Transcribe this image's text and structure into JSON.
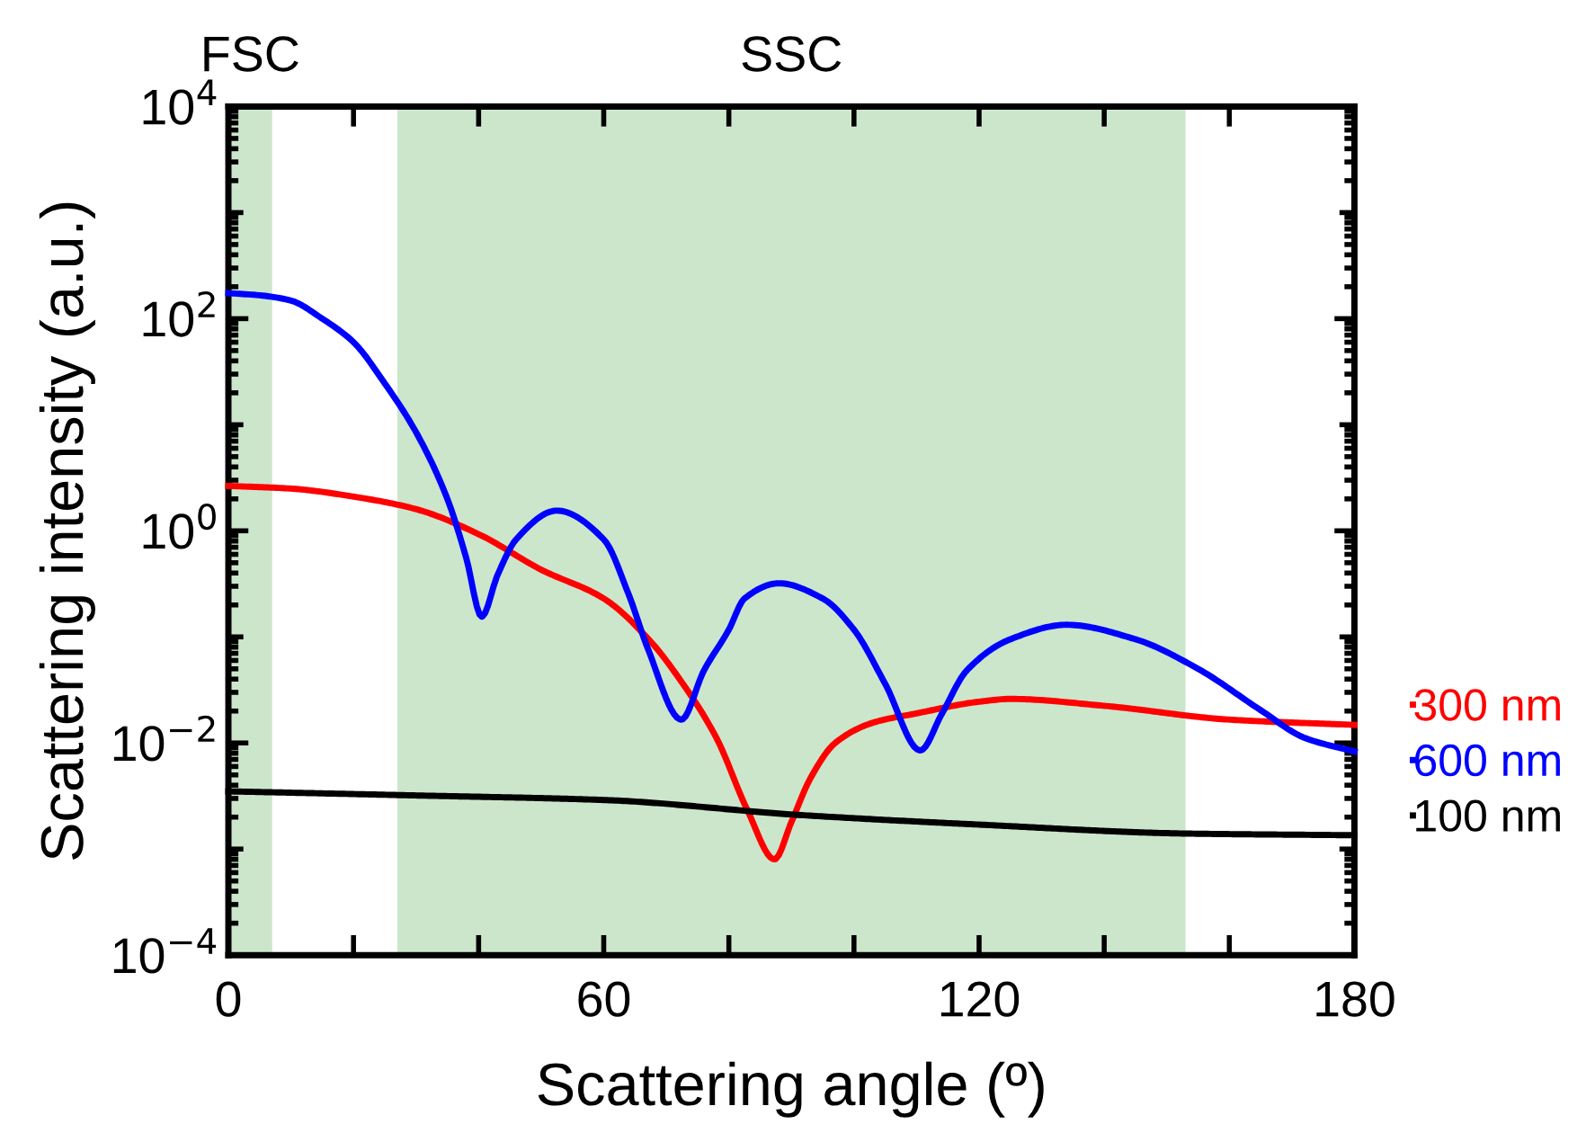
{
  "chart_data": {
    "type": "line",
    "xlabel": "Scattering angle (º)",
    "ylabel": "Scattering intensity (a.u.)",
    "log": "y",
    "xlim": [
      0,
      180
    ],
    "ylim": [
      0.0001,
      10000
    ],
    "xticks": [
      0,
      {
        "value": 20,
        "label": null
      },
      {
        "value": 40,
        "label": null
      },
      60,
      {
        "value": 80,
        "label": null
      },
      {
        "value": 100,
        "label": null
      },
      120,
      {
        "value": 140,
        "label": null
      },
      {
        "value": 160,
        "label": null
      },
      180
    ],
    "yticks": [
      {
        "value": 0.0001,
        "label": "10$^{−4}$"
      },
      {
        "value": 0.001,
        "label": null
      },
      {
        "value": 0.01,
        "label": "10$^{−2}$"
      },
      {
        "value": 0.1,
        "label": null
      },
      {
        "value": 1,
        "label": "10$^{0}$"
      },
      {
        "value": 10,
        "label": null
      },
      {
        "value": 100,
        "label": "10$^{2}$"
      },
      {
        "value": 1000,
        "label": null
      },
      {
        "value": 10000,
        "label": "10$^{4}$"
      }
    ],
    "grid": false,
    "legend": "right",
    "marker": "none",
    "line_style": "solid",
    "bands": [
      {
        "axis": "x",
        "from": 0,
        "to": 7,
        "label": "FSC",
        "color": "#cce6cc"
      },
      {
        "axis": "x",
        "from": 27,
        "to": 153,
        "label": "SSC",
        "color": "#cce6cc"
      }
    ],
    "series": [
      {
        "name": "300 nm",
        "color": "#ff0000",
        "x": [
          0,
          10,
          20,
          30,
          40,
          50,
          60,
          67.6,
          72,
          78,
          83,
          87.3,
          90,
          93,
          97,
          103,
          110,
          120,
          125,
          140,
          160,
          180
        ],
        "values": [
          2.65,
          2.5,
          2.1,
          1.6,
          0.93,
          0.43,
          0.23,
          0.089,
          0.041,
          0.0112,
          0.0023,
          0.0008,
          0.0018,
          0.0046,
          0.01,
          0.0155,
          0.019,
          0.0245,
          0.026,
          0.0224,
          0.0166,
          0.0148
        ]
      },
      {
        "name": "600 nm",
        "color": "#0000ff",
        "x": [
          0,
          5,
          10,
          15,
          20,
          25,
          30,
          35,
          38,
          40.5,
          43,
          46,
          52.5,
          60,
          64,
          67,
          72.4,
          76,
          80,
          82.5,
          88,
          95,
          100,
          105,
          110.6,
          114,
          118,
          125,
          134,
          145,
          155,
          165,
          172,
          180
        ],
        "values": [
          174,
          166,
          148,
          100,
          60,
          24.5,
          8.5,
          2.0,
          0.56,
          0.155,
          0.38,
          0.83,
          1.55,
          0.83,
          0.25,
          0.079,
          0.0166,
          0.048,
          0.117,
          0.23,
          0.32,
          0.23,
          0.117,
          0.036,
          0.0085,
          0.0186,
          0.048,
          0.095,
          0.13,
          0.095,
          0.05,
          0.0204,
          0.0112,
          0.0083
        ]
      },
      {
        "name": "100 nm",
        "color": "#000000",
        "x": [
          0,
          30,
          60,
          91,
          120,
          153,
          180
        ],
        "values": [
          0.0035,
          0.0032,
          0.0029,
          0.0021,
          0.0017,
          0.0014,
          0.00135
        ]
      }
    ]
  }
}
